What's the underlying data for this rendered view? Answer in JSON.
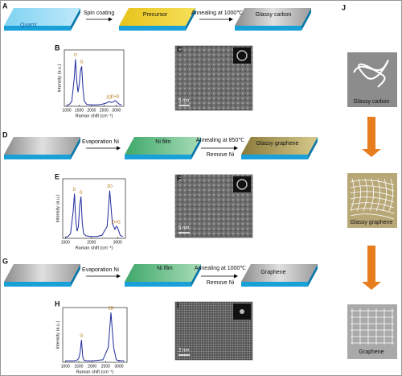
{
  "labels": [
    "A",
    "B",
    "C",
    "D",
    "E",
    "F",
    "G",
    "H",
    "I",
    "J"
  ],
  "row1": {
    "substrate": "Quartz",
    "step1": "Spin coating",
    "product1": "Precursor",
    "step2": "Annealing at 1000℃",
    "product2": "Glassy carbon"
  },
  "row2": {
    "step1": "Evaporation Ni",
    "product1": "Ni film",
    "step2": "Annealing at 850℃",
    "step2b": "Remove Ni",
    "product2": "Glassy graphene"
  },
  "row3": {
    "step1": "Evaporation Ni",
    "product1": "Ni film",
    "step2": "Annealing at 1000℃",
    "step2b": "Remove Ni",
    "product2": "Graphene"
  },
  "scale_bars": [
    "5 nm",
    "5 nm",
    "2 nm"
  ],
  "schematic": [
    "Glassy carbon",
    "Glassy graphene",
    "Graphene"
  ],
  "chart_data": [
    {
      "type": "line",
      "xlabel": "Raman shift (cm⁻¹)",
      "ylabel": "Intensity (a.u.)",
      "x": [
        1000,
        1100,
        1200,
        1300,
        1350,
        1400,
        1450,
        1500,
        1550,
        1600,
        1650,
        1700,
        1800,
        2000,
        2200,
        2400,
        2600,
        2700,
        2800,
        2900,
        2950,
        3000,
        3100,
        3200
      ],
      "series": [
        {
          "color": "#1f2a9c",
          "values": [
            0.02,
            0.04,
            0.1,
            0.6,
            1.0,
            0.55,
            0.3,
            0.45,
            0.75,
            0.85,
            0.4,
            0.12,
            0.04,
            0.03,
            0.03,
            0.04,
            0.07,
            0.1,
            0.08,
            0.1,
            0.12,
            0.1,
            0.05,
            0.03
          ]
        }
      ],
      "xlim": [
        900,
        3300
      ],
      "xticks": [
        1000,
        1500,
        2000,
        2500,
        3000
      ],
      "ylim": [
        0,
        1.2
      ],
      "annotations": [
        {
          "text": "D",
          "x": 1350,
          "y": 1.0
        },
        {
          "text": "G",
          "x": 1600,
          "y": 0.85
        },
        {
          "text": "2D",
          "x": 2700,
          "y": 0.1
        },
        {
          "text": "D+G",
          "x": 2950,
          "y": 0.12
        }
      ]
    },
    {
      "type": "line",
      "xlabel": "Raman shift (cm⁻¹)",
      "ylabel": "Intensity (a.u.)",
      "x": [
        1000,
        1100,
        1200,
        1300,
        1350,
        1400,
        1450,
        1500,
        1550,
        1600,
        1650,
        1700,
        1800,
        2000,
        2200,
        2400,
        2600,
        2700,
        2800,
        2900,
        2950,
        3000,
        3100,
        3200
      ],
      "series": [
        {
          "color": "#1f2a9c",
          "values": [
            0.02,
            0.03,
            0.08,
            0.45,
            0.75,
            0.3,
            0.12,
            0.2,
            0.55,
            0.7,
            0.25,
            0.08,
            0.04,
            0.03,
            0.03,
            0.05,
            0.2,
            0.8,
            0.25,
            0.15,
            0.2,
            0.18,
            0.05,
            0.03
          ]
        }
      ],
      "xlim": [
        900,
        3300
      ],
      "xticks": [
        1000,
        2000,
        3000
      ],
      "ylim": [
        0,
        1.0
      ],
      "annotations": [
        {
          "text": "D",
          "x": 1350,
          "y": 0.75
        },
        {
          "text": "G",
          "x": 1600,
          "y": 0.7
        },
        {
          "text": "2D",
          "x": 2700,
          "y": 0.8
        },
        {
          "text": "D+G",
          "x": 2950,
          "y": 0.2
        }
      ]
    },
    {
      "type": "line",
      "xlabel": "Raman shift (cm⁻¹)",
      "ylabel": "Intensity (a.u.)",
      "x": [
        1000,
        1100,
        1200,
        1300,
        1350,
        1400,
        1450,
        1500,
        1550,
        1600,
        1650,
        1700,
        1800,
        2000,
        2200,
        2400,
        2600,
        2700,
        2800,
        2900,
        2950,
        3000,
        3100,
        3200
      ],
      "series": [
        {
          "color": "#1f2a9c",
          "values": [
            0.03,
            0.03,
            0.03,
            0.03,
            0.03,
            0.04,
            0.05,
            0.08,
            0.2,
            0.45,
            0.1,
            0.04,
            0.03,
            0.03,
            0.04,
            0.05,
            0.3,
            1.0,
            0.3,
            0.05,
            0.04,
            0.04,
            0.03,
            0.03
          ]
        }
      ],
      "xlim": [
        900,
        3300
      ],
      "xticks": [
        1000,
        1500,
        2000,
        2500,
        3000
      ],
      "ylim": [
        0,
        1.1
      ],
      "annotations": [
        {
          "text": "G",
          "x": 1600,
          "y": 0.45
        },
        {
          "text": "2D",
          "x": 2700,
          "y": 1.0
        }
      ]
    }
  ]
}
